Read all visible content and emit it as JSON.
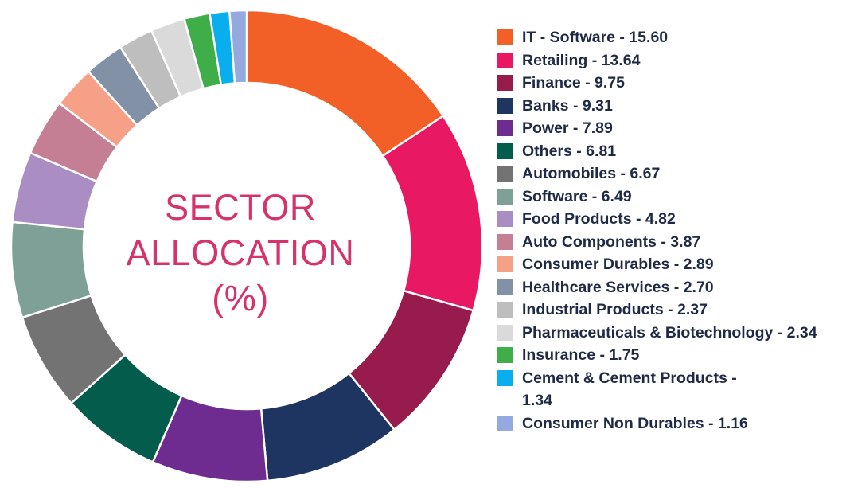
{
  "title": {
    "line1": "SECTOR",
    "line2": "ALLOCATION",
    "line3": "(%)"
  },
  "chart_data": {
    "type": "pie",
    "donut": true,
    "unit": "%",
    "legend_position": "right",
    "title": "SECTOR ALLOCATION (%)",
    "slices": [
      {
        "label": "IT - Software",
        "value": 15.6,
        "color": "#f26027",
        "legend": "IT - Software - 15.60"
      },
      {
        "label": "Retailing",
        "value": 13.64,
        "color": "#e91862",
        "legend": "Retailing - 13.64"
      },
      {
        "label": "Finance",
        "value": 9.75,
        "color": "#981b4d",
        "legend": "Finance - 9.75"
      },
      {
        "label": "Banks",
        "value": 9.31,
        "color": "#1e3561",
        "legend": "Banks - 9.31"
      },
      {
        "label": "Power",
        "value": 7.89,
        "color": "#6e2c91",
        "legend": "Power - 7.89"
      },
      {
        "label": "Others",
        "value": 6.81,
        "color": "#045c4c",
        "legend": "Others - 6.81"
      },
      {
        "label": "Automobiles",
        "value": 6.67,
        "color": "#737373",
        "legend": "Automobiles - 6.67"
      },
      {
        "label": "Software",
        "value": 6.49,
        "color": "#7ea096",
        "legend": "Software - 6.49"
      },
      {
        "label": "Food Products",
        "value": 4.82,
        "color": "#a98dc3",
        "legend": "Food Products - 4.82"
      },
      {
        "label": "Auto Components",
        "value": 3.87,
        "color": "#c47f94",
        "legend": "Auto Components - 3.87"
      },
      {
        "label": "Consumer Durables",
        "value": 2.89,
        "color": "#f6a187",
        "legend": "Consumer Durables - 2.89"
      },
      {
        "label": "Healthcare Services",
        "value": 2.7,
        "color": "#8391a6",
        "legend": "Healthcare Services - 2.70"
      },
      {
        "label": "Industrial Products",
        "value": 2.37,
        "color": "#bebebe",
        "legend": "Industrial Products - 2.37"
      },
      {
        "label": "Pharmaceuticals & Biotechnology",
        "value": 2.34,
        "color": "#dadada",
        "legend": "Pharmaceuticals & Biotechnology - 2.34"
      },
      {
        "label": "Insurance",
        "value": 1.75,
        "color": "#3fae49",
        "legend": "Insurance - 1.75"
      },
      {
        "label": "Cement & Cement Products",
        "value": 1.34,
        "color": "#08aeee",
        "legend": "Cement & Cement Products - 1.34"
      },
      {
        "label": "Consumer Non Durables",
        "value": 1.16,
        "color": "#93a9df",
        "legend": "Consumer Non Durables - 1.16"
      }
    ]
  }
}
